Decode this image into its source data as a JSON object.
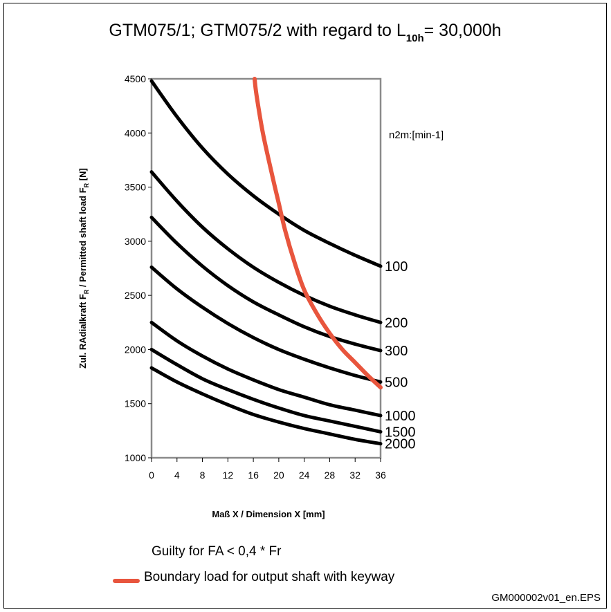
{
  "chart_data": {
    "type": "line",
    "title_main": "GTM075/1; GTM075/2 with regard to L",
    "title_subscript": "10h",
    "title_tail": "= 30,000h",
    "xlabel": "Maß X / Dimension X [mm]",
    "ylabel_parts": [
      "Zul. RAdialkraft F",
      "R",
      "  /  Permitted  shaft load  F",
      "R",
      "  [N]"
    ],
    "series_unit": "n2m:[min-1]",
    "xlim": [
      0,
      36
    ],
    "ylim": [
      1000,
      4500
    ],
    "x_ticks": [
      "0",
      "4",
      "8",
      "12",
      "16",
      "20",
      "24",
      "28",
      "32",
      "36"
    ],
    "y_ticks": [
      "1000",
      "1500",
      "2000",
      "2500",
      "3000",
      "3500",
      "4000",
      "4500"
    ],
    "grid": false,
    "series": [
      {
        "name": "100",
        "x": [
          0,
          4,
          8,
          12,
          16,
          20,
          24,
          28,
          32,
          36
        ],
        "values": [
          4480,
          4150,
          3860,
          3620,
          3420,
          3250,
          3100,
          2980,
          2870,
          2770
        ],
        "color": "#000000"
      },
      {
        "name": "200",
        "x": [
          0,
          4,
          8,
          12,
          16,
          20,
          24,
          28,
          32,
          36
        ],
        "values": [
          3640,
          3370,
          3130,
          2930,
          2760,
          2620,
          2500,
          2400,
          2320,
          2250
        ],
        "color": "#000000"
      },
      {
        "name": "300",
        "x": [
          0,
          4,
          8,
          12,
          16,
          20,
          24,
          28,
          32,
          36
        ],
        "values": [
          3220,
          2980,
          2770,
          2590,
          2440,
          2320,
          2210,
          2120,
          2050,
          1990
        ],
        "color": "#000000"
      },
      {
        "name": "500",
        "x": [
          0,
          4,
          8,
          12,
          16,
          20,
          24,
          28,
          32,
          36
        ],
        "values": [
          2760,
          2560,
          2390,
          2240,
          2110,
          2000,
          1910,
          1830,
          1760,
          1700
        ],
        "color": "#000000"
      },
      {
        "name": "1000",
        "x": [
          0,
          4,
          8,
          12,
          16,
          20,
          24,
          28,
          32,
          36
        ],
        "values": [
          2250,
          2080,
          1940,
          1820,
          1720,
          1630,
          1560,
          1490,
          1440,
          1390
        ],
        "color": "#000000"
      },
      {
        "name": "1500",
        "x": [
          0,
          4,
          8,
          12,
          16,
          20,
          24,
          28,
          32,
          36
        ],
        "values": [
          2000,
          1860,
          1730,
          1630,
          1540,
          1460,
          1390,
          1340,
          1290,
          1240
        ],
        "color": "#000000"
      },
      {
        "name": "2000",
        "x": [
          0,
          4,
          8,
          12,
          16,
          20,
          24,
          28,
          32,
          36
        ],
        "values": [
          1830,
          1700,
          1590,
          1490,
          1400,
          1330,
          1270,
          1220,
          1170,
          1130
        ],
        "color": "#000000"
      }
    ],
    "boundary": {
      "name": "Boundary load for output shaft with keyway",
      "color": "#e8553d",
      "x": [
        16.2,
        16.5,
        17.5,
        19,
        20,
        21,
        22.5,
        24,
        26,
        28,
        30,
        32,
        34,
        36
      ],
      "values": [
        4500,
        4350,
        4000,
        3600,
        3350,
        3100,
        2800,
        2550,
        2330,
        2150,
        2000,
        1880,
        1760,
        1650
      ]
    },
    "note": "Guilty for FA < 0,4 * Fr"
  },
  "footer": {
    "file_name": "GM000002v01_en.EPS"
  }
}
